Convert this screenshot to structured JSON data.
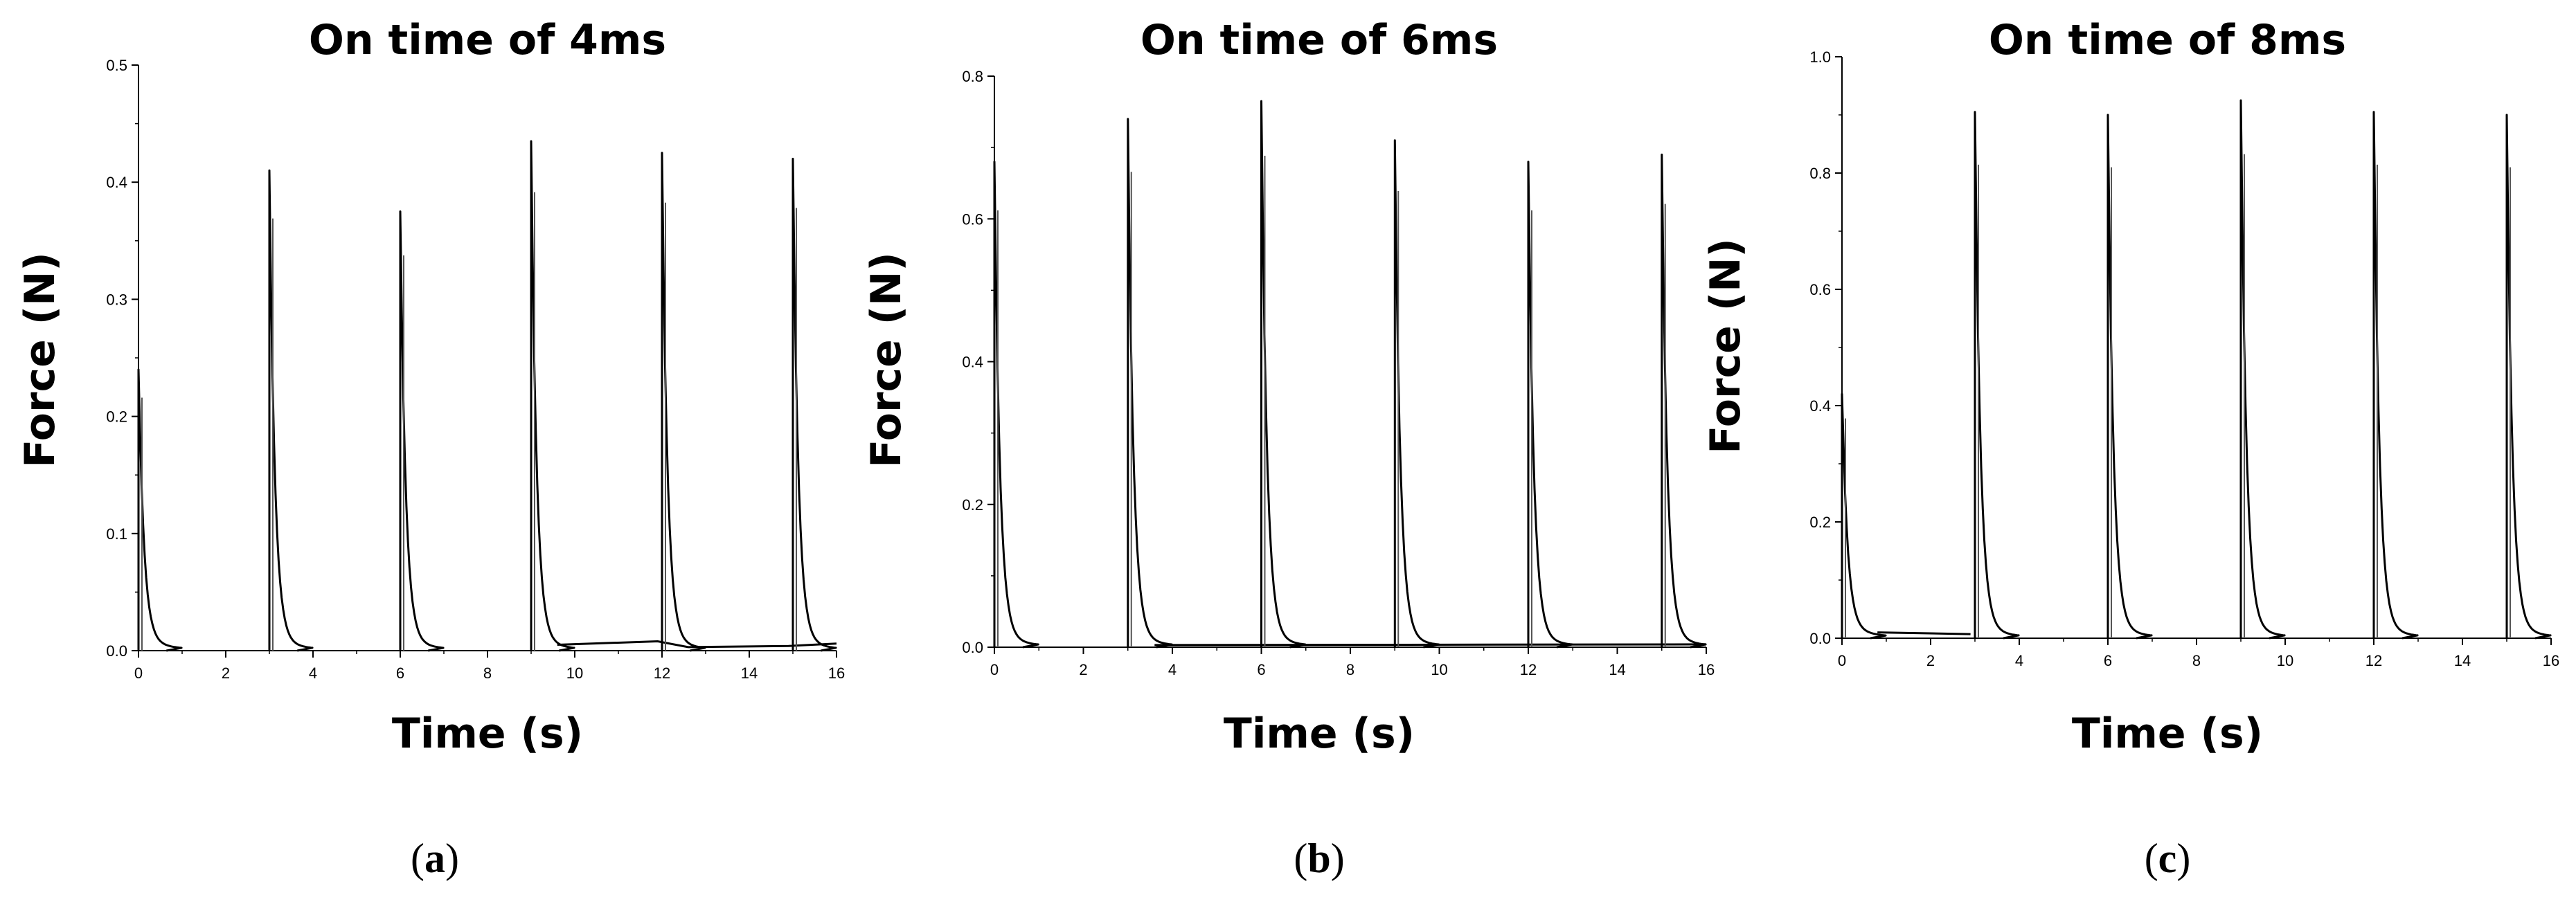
{
  "chart_data": [
    {
      "type": "line",
      "title": "On time of 4ms",
      "xlabel": "Time (s)",
      "ylabel": "Force (N)",
      "xlim": [
        0,
        16
      ],
      "ylim": [
        0,
        0.5
      ],
      "x_ticks": [
        "0",
        "2",
        "4",
        "6",
        "8",
        "10",
        "12",
        "14",
        "16"
      ],
      "y_ticks": [
        "0.0",
        "0.1",
        "0.2",
        "0.3",
        "0.4",
        "0.5"
      ],
      "peaks": [
        {
          "x": 0.0,
          "y": 0.24
        },
        {
          "x": 3.0,
          "y": 0.41
        },
        {
          "x": 6.0,
          "y": 0.375
        },
        {
          "x": 9.0,
          "y": 0.435
        },
        {
          "x": 12.0,
          "y": 0.425
        },
        {
          "x": 15.0,
          "y": 0.42
        }
      ],
      "baseline": [
        {
          "x": 9.6,
          "y": 0.005
        },
        {
          "x": 11.9,
          "y": 0.008
        },
        {
          "x": 12.6,
          "y": 0.003
        },
        {
          "x": 14.9,
          "y": 0.004
        },
        {
          "x": 16.0,
          "y": 0.006
        }
      ],
      "panel": {
        "open": "(",
        "letter": "a",
        "close": ")"
      }
    },
    {
      "type": "line",
      "title": "On time of 6ms",
      "xlabel": "Time (s)",
      "ylabel": "Force (N)",
      "xlim": [
        0,
        16
      ],
      "ylim": [
        0,
        0.8
      ],
      "x_ticks": [
        "0",
        "2",
        "4",
        "6",
        "8",
        "10",
        "12",
        "14",
        "16"
      ],
      "y_ticks": [
        "0.0",
        "0.2",
        "0.4",
        "0.6",
        "0.8"
      ],
      "peaks": [
        {
          "x": 0.0,
          "y": 0.68
        },
        {
          "x": 3.0,
          "y": 0.74
        },
        {
          "x": 6.0,
          "y": 0.765
        },
        {
          "x": 9.0,
          "y": 0.71
        },
        {
          "x": 12.0,
          "y": 0.68
        },
        {
          "x": 15.0,
          "y": 0.69
        }
      ],
      "baseline": [
        {
          "x": 3.6,
          "y": 0.003
        },
        {
          "x": 16.0,
          "y": 0.004
        }
      ],
      "panel": {
        "open": "(",
        "letter": "b",
        "close": ")"
      }
    },
    {
      "type": "line",
      "title": "On time of 8ms",
      "xlabel": "Time (s)",
      "ylabel": "Force (N)",
      "xlim": [
        0,
        16
      ],
      "ylim": [
        0,
        1.0
      ],
      "x_ticks": [
        "0",
        "2",
        "4",
        "6",
        "8",
        "10",
        "12",
        "14",
        "16"
      ],
      "y_ticks": [
        "0.0",
        "0.2",
        "0.4",
        "0.6",
        "0.8",
        "1.0"
      ],
      "peaks": [
        {
          "x": 0.0,
          "y": 0.42
        },
        {
          "x": 3.0,
          "y": 0.905
        },
        {
          "x": 6.0,
          "y": 0.9
        },
        {
          "x": 9.0,
          "y": 0.925
        },
        {
          "x": 12.0,
          "y": 0.905
        },
        {
          "x": 15.0,
          "y": 0.9
        }
      ],
      "baseline": [
        {
          "x": 0.8,
          "y": 0.01
        },
        {
          "x": 2.9,
          "y": 0.007
        }
      ],
      "panel": {
        "open": "(",
        "letter": "c",
        "close": ")"
      }
    }
  ],
  "colors": {
    "trace": "#000000",
    "axis": "#000000",
    "background": "#ffffff"
  }
}
